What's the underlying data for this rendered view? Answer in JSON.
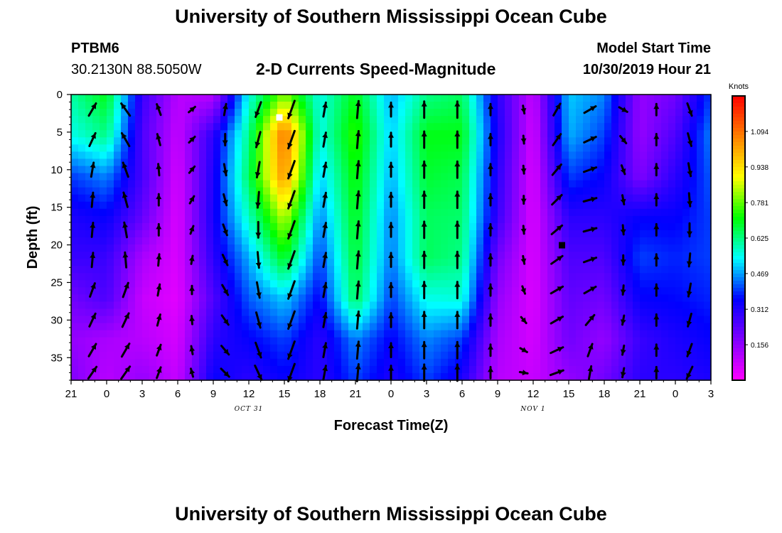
{
  "header": {
    "title": "University of Southern Mississippi Ocean Cube",
    "station_id": "PTBM6",
    "station_location": "30.2130N 88.5050W",
    "chart_title": "2-D Currents Speed-Magnitude",
    "model_start_label": "Model Start Time",
    "model_start_value": "10/30/2019 Hour 21"
  },
  "footer": {
    "title": "University of Southern Mississippi Ocean Cube"
  },
  "chart_data": {
    "type": "heatmap",
    "title": "2-D Currents Speed-Magnitude",
    "xlabel": "Forecast Time(Z)",
    "ylabel": "Depth (ft)",
    "x_tick_labels": [
      "21",
      "0",
      "3",
      "6",
      "9",
      "12",
      "15",
      "18",
      "21",
      "0",
      "3",
      "6",
      "9",
      "12",
      "15",
      "18",
      "21",
      "0",
      "3"
    ],
    "x_date_labels": [
      {
        "text": "OCT 31",
        "at_tick": 5
      },
      {
        "text": "NOV 1",
        "at_tick": 13
      }
    ],
    "y_ticks": [
      0,
      5,
      10,
      15,
      20,
      25,
      30,
      35
    ],
    "ylim": [
      0,
      38
    ],
    "y_inverted": true,
    "colorbar": {
      "title": "Knots",
      "tick_labels": [
        "1.094",
        "0.938",
        "0.781",
        "0.625",
        "0.469",
        "0.312",
        "0.156"
      ],
      "range": [
        0,
        1.25
      ],
      "colors": [
        "#ff00ff",
        "#8000ff",
        "#0000ff",
        "#00ffff",
        "#00ff00",
        "#ffff00",
        "#ff8000",
        "#ff0000"
      ]
    },
    "speed_profiles": [
      [
        0.6,
        0.55,
        0.4,
        0.32,
        0.28,
        0.2,
        0.15,
        0.18
      ],
      [
        0.7,
        0.62,
        0.45,
        0.35,
        0.28,
        0.25,
        0.12,
        0.1
      ],
      [
        0.28,
        0.25,
        0.26,
        0.22,
        0.12,
        0.08,
        0.1,
        0.15
      ],
      [
        0.1,
        0.08,
        0.06,
        0.05,
        0.05,
        0.04,
        0.06,
        0.08
      ],
      [
        0.1,
        0.3,
        0.32,
        0.33,
        0.3,
        0.25,
        0.3,
        0.35
      ],
      [
        0.55,
        0.62,
        0.65,
        0.58,
        0.48,
        0.42,
        0.35,
        0.3
      ],
      [
        0.8,
        1.1,
        1.05,
        0.85,
        0.7,
        0.5,
        0.4,
        0.35
      ],
      [
        0.55,
        0.55,
        0.5,
        0.45,
        0.4,
        0.35,
        0.3,
        0.3
      ],
      [
        0.7,
        0.75,
        0.72,
        0.7,
        0.68,
        0.65,
        0.45,
        0.4
      ],
      [
        0.48,
        0.5,
        0.48,
        0.45,
        0.44,
        0.4,
        0.35,
        0.32
      ],
      [
        0.62,
        0.7,
        0.68,
        0.65,
        0.65,
        0.55,
        0.45,
        0.4
      ],
      [
        0.65,
        0.7,
        0.66,
        0.64,
        0.62,
        0.56,
        0.4,
        0.32
      ],
      [
        0.3,
        0.32,
        0.3,
        0.28,
        0.2,
        0.15,
        0.12,
        0.1
      ],
      [
        0.08,
        0.06,
        0.05,
        0.05,
        0.05,
        0.05,
        0.06,
        0.08
      ],
      [
        0.5,
        0.48,
        0.4,
        0.3,
        0.25,
        0.22,
        0.2,
        0.15
      ],
      [
        0.45,
        0.4,
        0.35,
        0.3,
        0.25,
        0.2,
        0.15,
        0.2
      ],
      [
        0.15,
        0.15,
        0.18,
        0.35,
        0.4,
        0.35,
        0.28,
        0.3
      ],
      [
        0.2,
        0.25,
        0.3,
        0.35,
        0.38,
        0.36,
        0.32,
        0.3
      ],
      [
        0.4,
        0.45,
        0.42,
        0.4,
        0.4,
        0.38,
        0.35,
        0.32
      ]
    ],
    "vector_rows_ft": [
      2,
      6,
      10,
      14,
      18,
      22,
      26,
      30,
      34,
      37
    ],
    "vector_columns": [
      {
        "speed": 0.5,
        "dir": [
          30,
          25,
          10,
          5,
          5,
          5,
          20,
          25,
          30,
          35
        ]
      },
      {
        "speed": 0.55,
        "dir": [
          325,
          330,
          340,
          345,
          350,
          355,
          20,
          25,
          30,
          35
        ]
      },
      {
        "speed": 0.3,
        "dir": [
          340,
          345,
          355,
          0,
          0,
          5,
          10,
          15,
          20,
          20
        ]
      },
      {
        "speed": 0.08,
        "dir": [
          50,
          45,
          40,
          30,
          20,
          10,
          0,
          355,
          350,
          345
        ]
      },
      {
        "speed": 0.3,
        "dir": [
          10,
          180,
          170,
          165,
          160,
          155,
          150,
          145,
          140,
          135
        ]
      },
      {
        "speed": 0.6,
        "dir": [
          200,
          195,
          190,
          185,
          180,
          175,
          170,
          165,
          160,
          155
        ]
      },
      {
        "speed": 1.05,
        "dir": [
          200,
          200,
          200,
          200,
          200,
          200,
          200,
          200,
          200,
          200
        ]
      },
      {
        "speed": 0.5,
        "dir": [
          10,
          10,
          10,
          10,
          10,
          10,
          10,
          10,
          10,
          10
        ]
      },
      {
        "speed": 0.7,
        "dir": [
          5,
          5,
          5,
          5,
          5,
          5,
          5,
          5,
          5,
          5
        ]
      },
      {
        "speed": 0.48,
        "dir": [
          0,
          0,
          0,
          0,
          0,
          0,
          0,
          0,
          0,
          0
        ]
      },
      {
        "speed": 0.65,
        "dir": [
          0,
          0,
          0,
          0,
          0,
          0,
          0,
          0,
          0,
          0
        ]
      },
      {
        "speed": 0.65,
        "dir": [
          0,
          0,
          0,
          0,
          0,
          0,
          0,
          0,
          0,
          0
        ]
      },
      {
        "speed": 0.3,
        "dir": [
          0,
          0,
          0,
          0,
          0,
          0,
          0,
          0,
          0,
          0
        ]
      },
      {
        "speed": 0.05,
        "dir": [
          170,
          175,
          175,
          180,
          175,
          170,
          160,
          140,
          120,
          100
        ]
      },
      {
        "speed": 0.45,
        "dir": [
          30,
          35,
          40,
          45,
          50,
          55,
          60,
          60,
          65,
          70
        ]
      },
      {
        "speed": 0.42,
        "dir": [
          60,
          65,
          70,
          75,
          75,
          70,
          60,
          40,
          20,
          10
        ]
      },
      {
        "speed": 0.15,
        "dir": [
          120,
          140,
          160,
          170,
          175,
          180,
          185,
          190,
          190,
          190
        ]
      },
      {
        "speed": 0.3,
        "dir": [
          0,
          0,
          0,
          0,
          0,
          0,
          0,
          0,
          0,
          0
        ]
      },
      {
        "speed": 0.42,
        "dir": [
          160,
          165,
          170,
          175,
          180,
          185,
          190,
          195,
          200,
          205
        ]
      }
    ],
    "markers": [
      {
        "type": "square",
        "color": "#ffffff",
        "time_index": 5.85,
        "depth_ft": 3
      },
      {
        "type": "square",
        "color": "#000000",
        "time_index": 13.8,
        "depth_ft": 20
      }
    ]
  }
}
